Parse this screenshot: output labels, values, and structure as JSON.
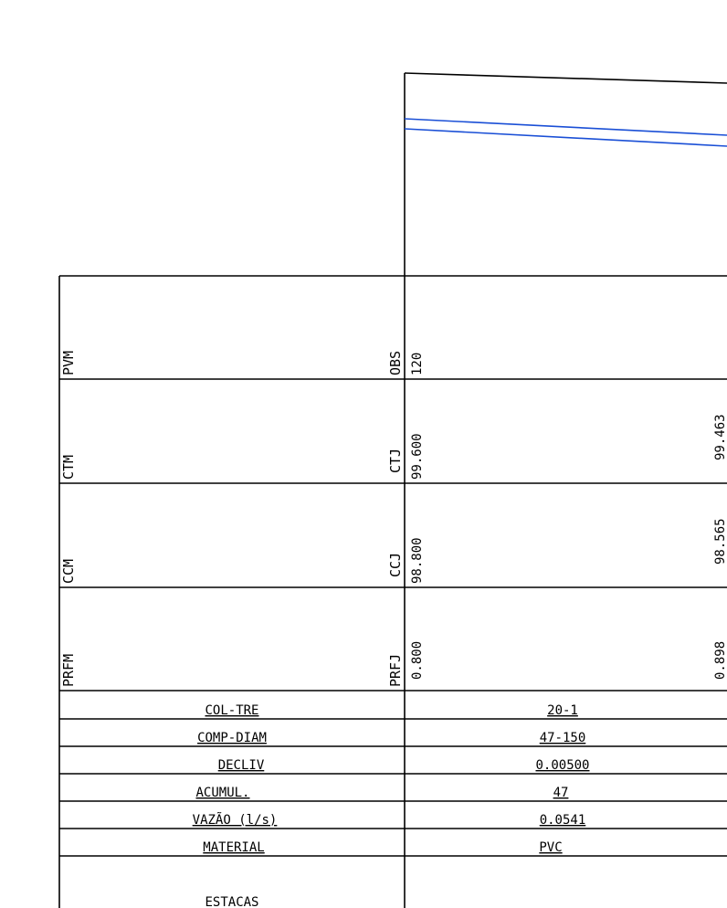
{
  "colors": {
    "line": "#000000",
    "pipe": "#1a4fd6",
    "background": "#ffffff"
  },
  "profile_rows": {
    "pvm": {
      "left_label": "PVM",
      "right_label": "OBS",
      "start_value": "120",
      "end_value": ""
    },
    "ctm": {
      "left_label": "CTM",
      "right_label": "CTJ",
      "start_value": "99.600",
      "end_value": "99.463"
    },
    "ccm": {
      "left_label": "CCM",
      "right_label": "CCJ",
      "start_value": "98.800",
      "end_value": "98.565"
    },
    "prfm": {
      "left_label": "PRFM",
      "right_label": "PRFJ",
      "start_value": "0.800",
      "end_value": "0.898"
    }
  },
  "data_rows": [
    {
      "label": "COL-TRE",
      "value": "20-1"
    },
    {
      "label": "COMP-DIAM",
      "value": "47-150"
    },
    {
      "label": "DECLIV",
      "value": "0.00500"
    },
    {
      "label": "ACUMUL.",
      "value": "47"
    },
    {
      "label": "VAZÃO (l/s)",
      "value": "0.0541"
    },
    {
      "label": "MATERIAL",
      "value": "PVC"
    }
  ],
  "stations": {
    "label": "ESTACAS"
  }
}
